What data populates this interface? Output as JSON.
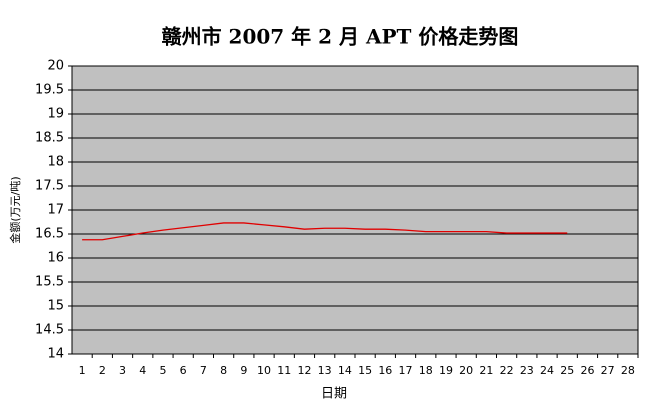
{
  "chart_data": {
    "type": "line",
    "title": "赣州市 2007 年 2 月 APT 价格走势图",
    "x_label": "日期",
    "y_label": "金额(万元/吨)",
    "categories": [
      1,
      2,
      3,
      4,
      5,
      6,
      7,
      8,
      9,
      10,
      11,
      12,
      13,
      14,
      15,
      16,
      17,
      18,
      19,
      20,
      21,
      22,
      23,
      24,
      25,
      26,
      27,
      28
    ],
    "series": [
      {
        "name": "APT",
        "color": "#e00000",
        "values": [
          16.38,
          16.38,
          16.45,
          16.52,
          16.58,
          16.63,
          16.68,
          16.73,
          16.73,
          16.69,
          16.65,
          16.6,
          16.62,
          16.62,
          16.6,
          16.6,
          16.58,
          16.55,
          16.55,
          16.55,
          16.55,
          16.52,
          16.52,
          16.52,
          16.52,
          null,
          null,
          null
        ]
      }
    ],
    "ylim": [
      14,
      20
    ],
    "yticks": [
      14,
      14.5,
      15,
      15.5,
      16,
      16.5,
      17,
      17.5,
      18,
      18.5,
      19,
      19.5,
      20
    ],
    "grid": true,
    "plot_background": "#c0c0c0"
  }
}
